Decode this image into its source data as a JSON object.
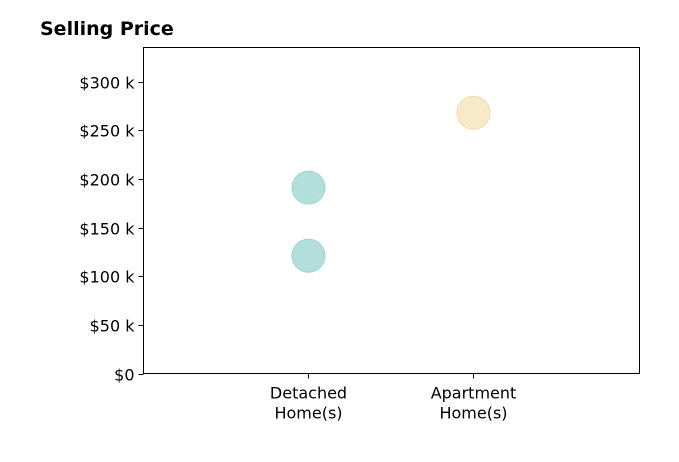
{
  "chart_data": {
    "type": "scatter",
    "title": "Selling Price",
    "xlabel": "",
    "ylabel": "",
    "categories": [
      "Detached\nHome(s)",
      "Apartment\nHome(s)"
    ],
    "ylim": [
      0,
      335
    ],
    "y_ticks": [
      0,
      50,
      100,
      150,
      200,
      250,
      300
    ],
    "y_tick_labels": [
      "$0",
      "$50 k",
      "$100 k",
      "$150 k",
      "$200 k",
      "$250 k",
      "$300 k"
    ],
    "grid": false,
    "series": [
      {
        "category": "Detached\nHome(s)",
        "color": "#b2dfdb",
        "stroke": "#9fd3cf",
        "values": [
          191,
          121
        ]
      },
      {
        "category": "Apartment\nHome(s)",
        "color": "#f8e9c8",
        "stroke": "#f0dcb0",
        "values": [
          268
        ]
      }
    ]
  }
}
